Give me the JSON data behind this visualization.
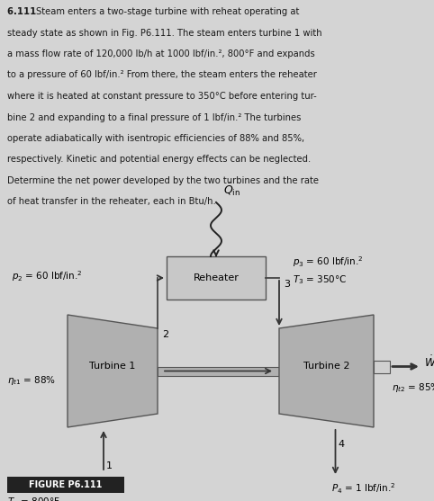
{
  "background_color": "#d4d4d4",
  "text_color": "#1a1a1a",
  "fig_width": 4.82,
  "fig_height": 5.57,
  "dpi": 100,
  "problem_lines": [
    [
      "bold",
      "6.111 ",
      "Steam enters a two-stage turbine with reheat operating at"
    ],
    [
      "normal",
      "steady state as shown in Fig. P6.111. The steam enters turbine 1 with"
    ],
    [
      "normal",
      "a mass flow rate of 120,000 lb/h at 1000 lbf/in.², 800°F and expands"
    ],
    [
      "normal",
      "to a pressure of 60 lbf/in.² From there, the steam enters the reheater"
    ],
    [
      "normal",
      "where it is heated at constant pressure to 350°C before entering tur-"
    ],
    [
      "normal",
      "bine 2 and expanding to a final pressure of 1 lbf/in.² The turbines"
    ],
    [
      "normal",
      "operate adiabatically with isentropic efficiencies of 88% and 85%,"
    ],
    [
      "normal",
      "respectively. Kinetic and potential energy effects can be neglected."
    ],
    [
      "normal",
      "Determine the net power developed by the two turbines and the rate"
    ],
    [
      "normal",
      "of heat transfer in the reheater, each in Btu/h."
    ]
  ],
  "turbine1_color": "#b0b0b0",
  "turbine2_color": "#b0b0b0",
  "reheater_color": "#c8c8c8",
  "arrow_color": "#333333",
  "line_color": "#444444",
  "figure_label": "FIGURE P6.111",
  "figure_label_bg": "#222222",
  "figure_label_color": "#ffffff"
}
